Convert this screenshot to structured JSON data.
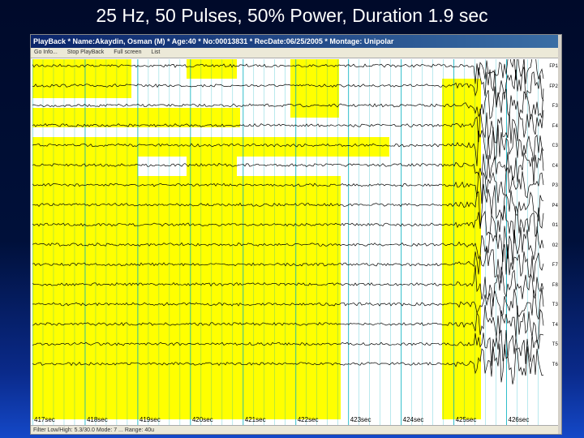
{
  "slide": {
    "title": "25 Hz, 50 Pulses, 50% Power, Duration 1.9 sec"
  },
  "window": {
    "title": "PlayBack * Name:Akaydin, Osman (M) * Age:40 * No:00013831 * RecDate:06/25/2005 * Montage: Unipolar",
    "menu_items": [
      "Go Info...",
      "Stop PlayBack",
      "Full screen",
      "List"
    ],
    "status": "Filter Low/High: 5.3/30.0   Mode: 7 ... Range: 40u"
  },
  "eeg": {
    "channels": [
      "FP1",
      "FP2",
      "F3",
      "F4",
      "C3",
      "C4",
      "P3",
      "P4",
      "O1",
      "O2",
      "F7",
      "F8",
      "T3",
      "T4",
      "T5",
      "T6"
    ],
    "time_labels": [
      "417sec",
      "418sec",
      "419sec",
      "420sec",
      "421sec",
      "422sec",
      "423sec",
      "424sec",
      "425sec",
      "426sec"
    ],
    "highlight_color": "#ffff00",
    "trace_color": "#000000",
    "grid_color": "#00b0c0",
    "stimulus_onset_sec": 425.4
  }
}
